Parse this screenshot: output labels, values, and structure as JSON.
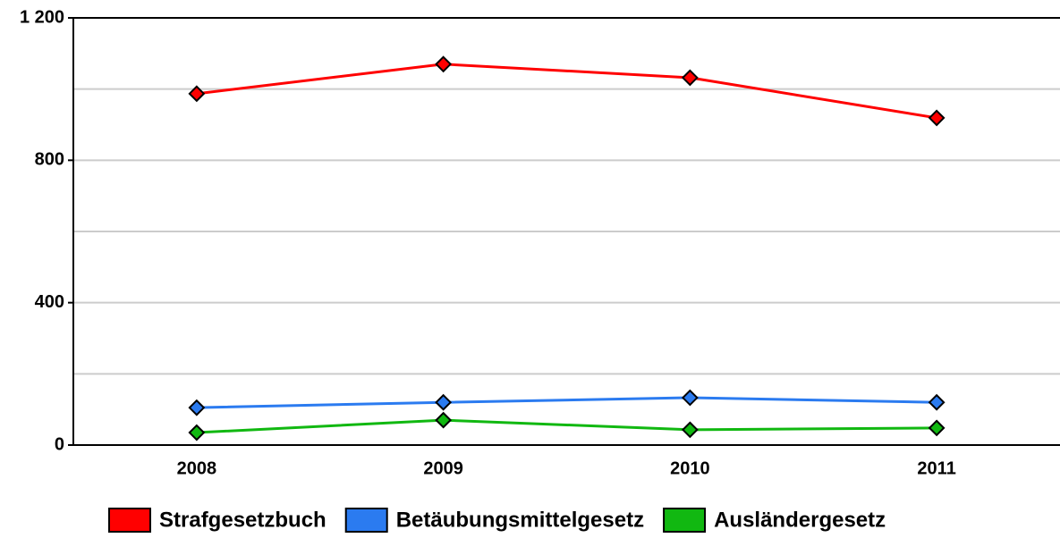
{
  "chart_data": {
    "type": "line",
    "categories": [
      "2008",
      "2009",
      "2010",
      "2011"
    ],
    "series": [
      {
        "name": "Strafgesetzbuch",
        "color": "#ff0000",
        "values": [
          987,
          1070,
          1032,
          919
        ]
      },
      {
        "name": "Betäubungsmittelgesetz",
        "color": "#2b7bf0",
        "values": [
          105,
          120,
          133,
          120
        ]
      },
      {
        "name": "Ausländergesetz",
        "color": "#11b811",
        "values": [
          35,
          70,
          43,
          48
        ]
      }
    ],
    "ylim": [
      0,
      1200
    ],
    "yticks": [
      0,
      400,
      800,
      {
        "value": 1200,
        "label": "1 200"
      }
    ],
    "minor_yticks": [
      200,
      600,
      1000
    ],
    "grid": true,
    "legend": "bottom"
  }
}
